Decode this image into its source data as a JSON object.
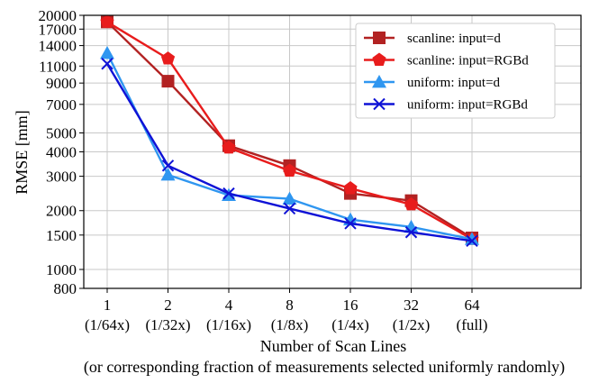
{
  "chart_data": {
    "type": "line",
    "title": "",
    "xlabel": "Number of Scan Lines",
    "xlabel_line2": "(or corresponding fraction of measurements selected uniformly randomly)",
    "ylabel": "RMSE [mm]",
    "yscale": "log",
    "ylim": [
      800,
      20000
    ],
    "grid": true,
    "legend_position": "top-right",
    "categories": [
      "1",
      "2",
      "4",
      "8",
      "16",
      "32",
      "64"
    ],
    "category_sublabels": [
      "(1/64x)",
      "(1/32x)",
      "(1/16x)",
      "(1/8x)",
      "(1/4x)",
      "(1/2x)",
      "(full)"
    ],
    "y_ticks": [
      "800",
      "1000",
      "1500",
      "2000",
      "3000",
      "4000",
      "5000",
      "7000",
      "9000",
      "11000",
      "14000",
      "17000",
      "20000"
    ],
    "y_tick_values": [
      800,
      1000,
      1500,
      2000,
      3000,
      4000,
      5000,
      7000,
      9000,
      11000,
      14000,
      17000,
      20000
    ],
    "series": [
      {
        "name": "scanline: input=d",
        "color": "#b22222",
        "marker": "square",
        "values": [
          18500,
          9200,
          4300,
          3400,
          2450,
          2250,
          1450
        ]
      },
      {
        "name": "scanline: input=RGBd",
        "color": "#e81c1c",
        "marker": "pentagon",
        "values": [
          18500,
          12000,
          4200,
          3200,
          2600,
          2150,
          1430
        ]
      },
      {
        "name": "uniform: input=d",
        "color": "#2f96f0",
        "marker": "triangle",
        "values": [
          12800,
          3050,
          2400,
          2300,
          1800,
          1650,
          1430
        ]
      },
      {
        "name": "uniform: input=RGBd",
        "color": "#0f12d6",
        "marker": "x",
        "values": [
          11300,
          3400,
          2450,
          2050,
          1720,
          1550,
          1400
        ]
      }
    ]
  }
}
